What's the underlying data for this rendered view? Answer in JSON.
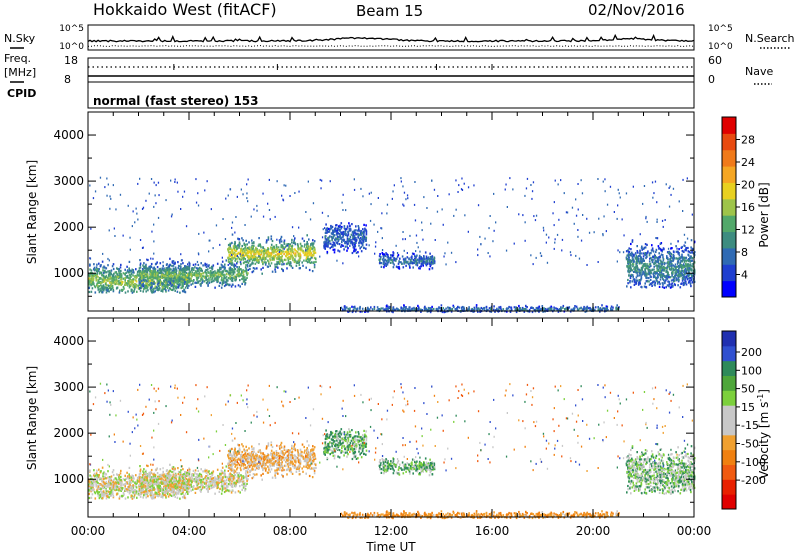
{
  "header": {
    "station": "Hokkaido West (fitACF)",
    "beam": "Beam 15",
    "date": "02/Nov/2016"
  },
  "noise_panel": {
    "left_label": "N.Sky",
    "right_label": "N.Search",
    "ticks": [
      "10^5",
      "10^0"
    ]
  },
  "freq_panel": {
    "left_label": "Freq.",
    "left_unit": "[MHz]",
    "left_ticks": [
      "18",
      "8"
    ],
    "right_label": "Nave",
    "right_ticks": [
      "60",
      "0"
    ]
  },
  "cpid": {
    "label": "CPID",
    "value": "normal (fast stereo) 153"
  },
  "chart_data": [
    {
      "type": "heatmap",
      "name": "power",
      "ylabel": "Slant Range [km]",
      "ylim": [
        180,
        4500
      ],
      "yticks": [
        1000,
        2000,
        3000,
        4000
      ],
      "xlim": [
        0,
        24
      ],
      "colorbar": {
        "label": "Power [dB]",
        "ticks": [
          4,
          8,
          12,
          16,
          20,
          24,
          28
        ],
        "range": [
          0,
          32
        ],
        "colors": [
          "#0000ff",
          "#1f3fd0",
          "#2f6ab4",
          "#3d8c80",
          "#52a86a",
          "#9ec44a",
          "#e8d020",
          "#f5a623",
          "#f07a1a",
          "#e84a10",
          "#e00000"
        ]
      },
      "regions": [
        {
          "t0": 0.0,
          "t1": 4.0,
          "r0": 600,
          "r1": 1700,
          "peak": 900,
          "level": 14
        },
        {
          "t0": 2.0,
          "t1": 6.3,
          "r0": 700,
          "r1": 1500,
          "peak": 1000,
          "level": 13
        },
        {
          "t0": 5.5,
          "t1": 9.0,
          "r0": 1000,
          "r1": 2000,
          "peak": 1450,
          "level": 17
        },
        {
          "t0": 9.3,
          "t1": 11.0,
          "r0": 1300,
          "r1": 2200,
          "peak": 1800,
          "level": 6
        },
        {
          "t0": 11.5,
          "t1": 13.7,
          "r0": 1100,
          "r1": 1600,
          "peak": 1300,
          "level": 7
        },
        {
          "t0": 21.3,
          "t1": 24.0,
          "r0": 700,
          "r1": 2200,
          "peak": 1200,
          "level": 9
        },
        {
          "t0": 10.0,
          "t1": 21.0,
          "r0": 180,
          "r1": 400,
          "peak": 250,
          "level": 7
        }
      ]
    },
    {
      "type": "heatmap",
      "name": "velocity",
      "ylabel": "Slant Range [km]",
      "ylim": [
        180,
        4500
      ],
      "yticks": [
        1000,
        2000,
        3000,
        4000
      ],
      "xlim": [
        0,
        24
      ],
      "xticks": [
        "00:00",
        "04:00",
        "08:00",
        "12:00",
        "16:00",
        "20:00",
        "00:00"
      ],
      "xlabel": "Time UT",
      "colorbar": {
        "label": "Velocity [m s",
        "label_exponent": "-1",
        "label_close": "]",
        "ticks": [
          "200",
          "100",
          "50",
          "15",
          "-15",
          "-50",
          "-100",
          "-200"
        ],
        "colors": [
          "#2030b0",
          "#3050d0",
          "#2e8a5a",
          "#4ea63a",
          "#7cd03c",
          "#c8c8c8",
          "#c8c8c8",
          "#f0a030",
          "#f08010",
          "#f05a10",
          "#e82000",
          "#e00000"
        ]
      },
      "regions": [
        {
          "t0": 0.0,
          "t1": 4.0,
          "r0": 600,
          "r1": 1700,
          "peak": 900,
          "level": 0
        },
        {
          "t0": 2.0,
          "t1": 6.3,
          "r0": 700,
          "r1": 1500,
          "peak": 1000,
          "level": 0
        },
        {
          "t0": 5.5,
          "t1": 9.0,
          "r0": 1000,
          "r1": 2000,
          "peak": 1450,
          "level": -20
        },
        {
          "t0": 9.3,
          "t1": 11.0,
          "r0": 1300,
          "r1": 2200,
          "peak": 1800,
          "level": 30
        },
        {
          "t0": 11.5,
          "t1": 13.7,
          "r0": 1100,
          "r1": 1600,
          "peak": 1300,
          "level": 30
        },
        {
          "t0": 21.3,
          "t1": 24.0,
          "r0": 700,
          "r1": 2200,
          "peak": 1200,
          "level": 20
        },
        {
          "t0": 10.0,
          "t1": 21.0,
          "r0": 180,
          "r1": 400,
          "peak": 250,
          "level": -40
        }
      ]
    }
  ]
}
